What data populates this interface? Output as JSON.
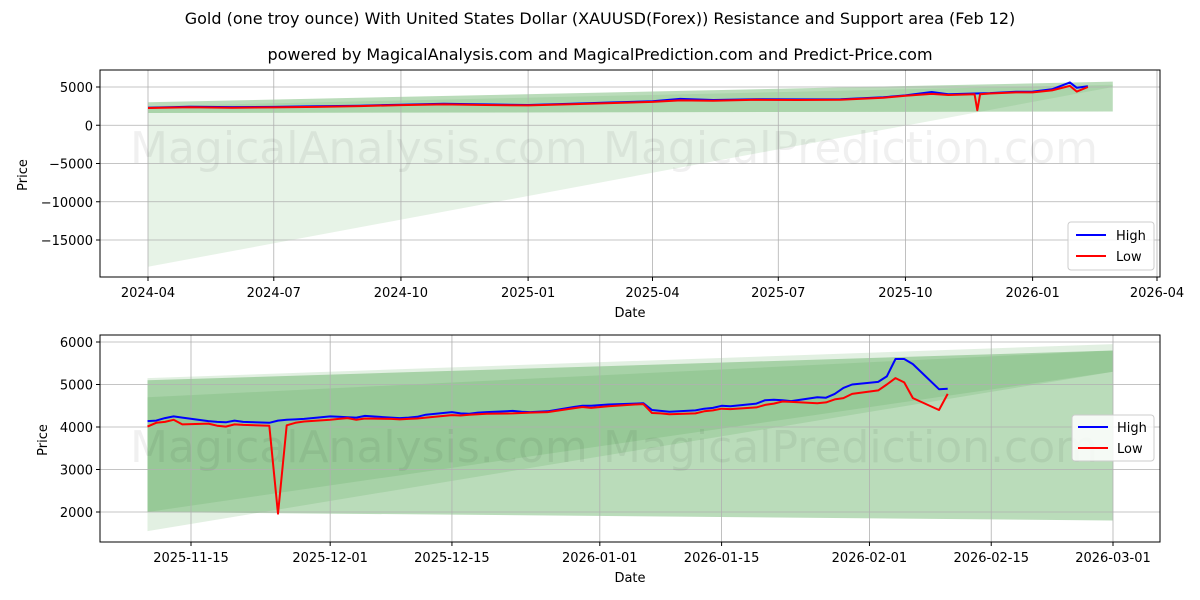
{
  "title": "Gold (one troy ounce) With United States Dollar (XAUUSD(Forex)) Resistance and Support area (Feb 12)",
  "subtitle": "powered by MagicalAnalysis.com and MagicalPrediction.com and Predict-Price.com",
  "watermarks": [
    "MagicalAnalysis.com",
    "MagicalPrediction.com"
  ],
  "colors": {
    "high": "#0000ff",
    "low": "#ff0000",
    "band_dark": "#2e8b2e",
    "band_light": "#2e8b2e",
    "grid": "#b0b0b0"
  },
  "chart_data": [
    {
      "type": "line",
      "panel": "top",
      "title": "",
      "xlabel": "Date",
      "ylabel": "Price",
      "xticks": [
        "2024-04",
        "2024-07",
        "2024-10",
        "2025-01",
        "2025-04",
        "2025-07",
        "2025-10",
        "2026-01",
        "2026-04"
      ],
      "yticks": [
        5000,
        0,
        -5000,
        -10000,
        -15000
      ],
      "ylim": [
        -19500,
        7300
      ],
      "xlim": [
        "2024-02-15",
        "2026-04-03"
      ],
      "grid": true,
      "legend": {
        "position": "lower right",
        "entries": [
          "High",
          "Low"
        ]
      },
      "bands": [
        {
          "name": "resistance-support-band",
          "x": [
            "2024-04-01",
            "2026-02-28"
          ],
          "upper": [
            3000,
            5700
          ],
          "lower": [
            1600,
            1800
          ],
          "opacity": 0.35
        },
        {
          "name": "projection-cone",
          "x": [
            "2024-04-01",
            "2026-02-28"
          ],
          "upper": [
            2500,
            5300
          ],
          "lower": [
            -18500,
            5000
          ],
          "opacity": 0.12
        }
      ],
      "series": [
        {
          "name": "High",
          "x": [
            "2024-04-01",
            "2024-05-01",
            "2024-06-01",
            "2024-07-01",
            "2024-08-01",
            "2024-09-01",
            "2024-10-01",
            "2024-11-01",
            "2024-12-01",
            "2025-01-01",
            "2025-02-01",
            "2025-03-01",
            "2025-04-01",
            "2025-04-21",
            "2025-05-15",
            "2025-06-15",
            "2025-07-15",
            "2025-08-15",
            "2025-09-15",
            "2025-10-01",
            "2025-10-20",
            "2025-11-01",
            "2025-11-20",
            "2025-12-01",
            "2025-12-20",
            "2026-01-01",
            "2026-01-15",
            "2026-01-28",
            "2026-02-02",
            "2026-02-10"
          ],
          "values": [
            2300,
            2420,
            2370,
            2400,
            2480,
            2560,
            2680,
            2800,
            2720,
            2650,
            2800,
            2980,
            3150,
            3450,
            3300,
            3400,
            3380,
            3400,
            3650,
            3900,
            4350,
            4050,
            4150,
            4200,
            4380,
            4400,
            4700,
            5600,
            4900,
            5100
          ]
        },
        {
          "name": "Low",
          "x": [
            "2024-04-01",
            "2024-05-01",
            "2024-06-01",
            "2024-07-01",
            "2024-08-01",
            "2024-09-01",
            "2024-10-01",
            "2024-11-01",
            "2024-12-01",
            "2025-01-01",
            "2025-02-01",
            "2025-03-01",
            "2025-04-01",
            "2025-04-21",
            "2025-05-15",
            "2025-06-15",
            "2025-07-15",
            "2025-08-15",
            "2025-09-15",
            "2025-10-01",
            "2025-10-20",
            "2025-11-01",
            "2025-11-20",
            "2025-11-22",
            "2025-11-24",
            "2025-12-01",
            "2025-12-20",
            "2026-01-01",
            "2026-01-15",
            "2026-01-28",
            "2026-02-02",
            "2026-02-10"
          ],
          "values": [
            2250,
            2350,
            2300,
            2330,
            2400,
            2500,
            2630,
            2720,
            2650,
            2600,
            2750,
            2900,
            3050,
            3250,
            3200,
            3330,
            3300,
            3330,
            3600,
            3850,
            4100,
            3950,
            4050,
            1950,
            4050,
            4150,
            4300,
            4300,
            4550,
            5150,
            4400,
            5000
          ]
        }
      ]
    },
    {
      "type": "line",
      "panel": "bottom",
      "title": "",
      "xlabel": "Date",
      "ylabel": "Price",
      "xticks": [
        "2025-11-15",
        "2025-12-01",
        "2025-12-15",
        "2026-01-01",
        "2026-01-15",
        "2026-02-01",
        "2026-02-15",
        "2026-03-01"
      ],
      "yticks": [
        6000,
        5000,
        4000,
        3000,
        2000
      ],
      "ylim": [
        1300,
        6150
      ],
      "xlim": [
        "2025-11-04",
        "2026-03-03"
      ],
      "grid": true,
      "legend": {
        "position": "center right",
        "entries": [
          "High",
          "Low"
        ]
      },
      "bands": [
        {
          "name": "outer-light-band",
          "x": [
            "2025-11-10",
            "2026-03-01"
          ],
          "upper": [
            5150,
            5950
          ],
          "lower": [
            1550,
            5300
          ],
          "opacity": 0.15
        },
        {
          "name": "resistance-band",
          "x": [
            "2025-11-10",
            "2026-03-01"
          ],
          "upper": [
            5100,
            5800
          ],
          "lower": [
            2000,
            1800
          ],
          "opacity": 0.35
        },
        {
          "name": "inner-band",
          "x": [
            "2025-11-10",
            "2026-03-01"
          ],
          "upper": [
            4700,
            5800
          ],
          "lower": [
            2000,
            5300
          ],
          "opacity": 0.15
        }
      ],
      "series": [
        {
          "name": "High",
          "x": [
            "2025-11-10",
            "2025-11-11",
            "2025-11-12",
            "2025-11-13",
            "2025-11-14",
            "2025-11-17",
            "2025-11-18",
            "2025-11-19",
            "2025-11-20",
            "2025-11-21",
            "2025-11-24",
            "2025-11-25",
            "2025-11-26",
            "2025-11-27",
            "2025-11-28",
            "2025-12-01",
            "2025-12-02",
            "2025-12-03",
            "2025-12-04",
            "2025-12-05",
            "2025-12-08",
            "2025-12-09",
            "2025-12-10",
            "2025-12-11",
            "2025-12-12",
            "2025-12-15",
            "2025-12-16",
            "2025-12-17",
            "2025-12-18",
            "2025-12-19",
            "2025-12-22",
            "2025-12-23",
            "2025-12-24",
            "2025-12-26",
            "2025-12-29",
            "2025-12-30",
            "2025-12-31",
            "2026-01-02",
            "2026-01-05",
            "2026-01-06",
            "2026-01-07",
            "2026-01-08",
            "2026-01-09",
            "2026-01-12",
            "2026-01-13",
            "2026-01-14",
            "2026-01-15",
            "2026-01-16",
            "2026-01-19",
            "2026-01-20",
            "2026-01-21",
            "2026-01-22",
            "2026-01-23",
            "2026-01-26",
            "2026-01-27",
            "2026-01-28",
            "2026-01-29",
            "2026-01-30",
            "2026-02-02",
            "2026-02-03",
            "2026-02-04",
            "2026-02-05",
            "2026-02-06",
            "2026-02-09",
            "2026-02-10"
          ],
          "values": [
            4140,
            4150,
            4210,
            4250,
            4220,
            4140,
            4120,
            4110,
            4150,
            4120,
            4100,
            4150,
            4170,
            4180,
            4190,
            4250,
            4240,
            4230,
            4220,
            4260,
            4220,
            4210,
            4220,
            4240,
            4290,
            4350,
            4320,
            4310,
            4340,
            4350,
            4380,
            4360,
            4350,
            4370,
            4470,
            4500,
            4500,
            4530,
            4550,
            4560,
            4400,
            4380,
            4360,
            4390,
            4430,
            4450,
            4500,
            4490,
            4550,
            4630,
            4640,
            4630,
            4610,
            4700,
            4690,
            4780,
            4920,
            5000,
            5060,
            5190,
            5600,
            5600,
            5480,
            4890,
            4900
          ]
        },
        {
          "name": "Low",
          "x": [
            "2025-11-10",
            "2025-11-11",
            "2025-11-12",
            "2025-11-13",
            "2025-11-14",
            "2025-11-17",
            "2025-11-18",
            "2025-11-19",
            "2025-11-20",
            "2025-11-21",
            "2025-11-24",
            "2025-11-25",
            "2025-11-26",
            "2025-11-27",
            "2025-11-28",
            "2025-12-01",
            "2025-12-02",
            "2025-12-03",
            "2025-12-04",
            "2025-12-05",
            "2025-12-08",
            "2025-12-09",
            "2025-12-10",
            "2025-12-11",
            "2025-12-12",
            "2025-12-15",
            "2025-12-16",
            "2025-12-17",
            "2025-12-18",
            "2025-12-19",
            "2025-12-22",
            "2025-12-23",
            "2025-12-24",
            "2025-12-26",
            "2025-12-29",
            "2025-12-30",
            "2025-12-31",
            "2026-01-02",
            "2026-01-05",
            "2026-01-06",
            "2026-01-07",
            "2026-01-08",
            "2026-01-09",
            "2026-01-12",
            "2026-01-13",
            "2026-01-14",
            "2026-01-15",
            "2026-01-16",
            "2026-01-19",
            "2026-01-20",
            "2026-01-21",
            "2026-01-22",
            "2026-01-23",
            "2026-01-26",
            "2026-01-27",
            "2026-01-28",
            "2026-01-29",
            "2026-01-30",
            "2026-02-02",
            "2026-02-03",
            "2026-02-04",
            "2026-02-05",
            "2026-02-06",
            "2026-02-09",
            "2026-02-10"
          ],
          "values": [
            4010,
            4100,
            4120,
            4170,
            4060,
            4080,
            4030,
            4010,
            4060,
            4050,
            4030,
            1960,
            4040,
            4100,
            4130,
            4170,
            4190,
            4210,
            4170,
            4200,
            4190,
            4180,
            4190,
            4200,
            4220,
            4280,
            4270,
            4290,
            4300,
            4310,
            4320,
            4330,
            4340,
            4350,
            4440,
            4470,
            4450,
            4490,
            4530,
            4540,
            4330,
            4320,
            4300,
            4320,
            4370,
            4390,
            4430,
            4420,
            4460,
            4520,
            4550,
            4600,
            4590,
            4560,
            4580,
            4650,
            4680,
            4780,
            4860,
            5000,
            5150,
            5050,
            4680,
            4400,
            4780
          ]
        }
      ]
    }
  ]
}
